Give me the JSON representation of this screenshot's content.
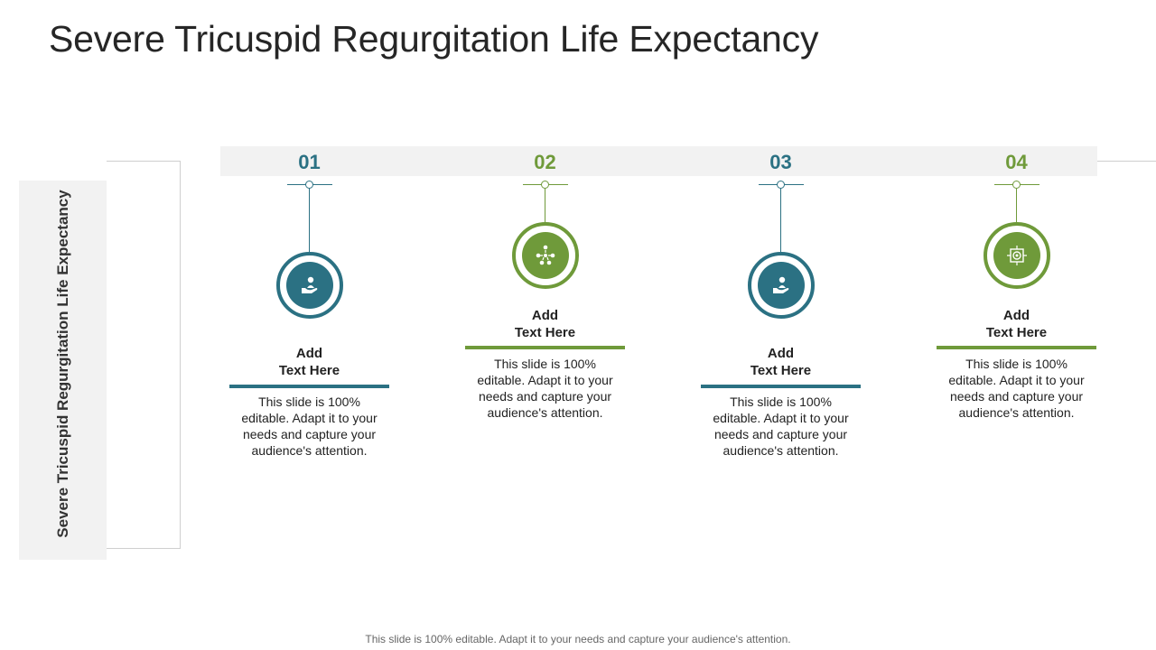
{
  "title": "Severe Tricuspid Regurgitation Life Expectancy",
  "side_label": "Severe Tricuspid Regurgitation Life Expectancy",
  "colors": {
    "teal": "#2b7183",
    "green": "#6f9a3a",
    "panel": "#f2f2f2"
  },
  "steps": [
    {
      "number": "01",
      "heading_1": "Add",
      "heading_2": "Text Here",
      "body": "This slide is 100% editable. Adapt it to your needs and capture your audience's attention.",
      "icon": "hand-holding-person-icon",
      "color": "teal"
    },
    {
      "number": "02",
      "heading_1": "Add",
      "heading_2": "Text Here",
      "body": "This slide is 100% editable. Adapt it to your needs and capture your audience's attention.",
      "icon": "team-network-icon",
      "color": "green"
    },
    {
      "number": "03",
      "heading_1": "Add",
      "heading_2": "Text Here",
      "body": "This slide is 100% editable. Adapt it to your needs and capture your audience's attention.",
      "icon": "hand-holding-person-icon",
      "color": "teal"
    },
    {
      "number": "04",
      "heading_1": "Add",
      "heading_2": "Text Here",
      "body": "This slide is 100% editable. Adapt it to your needs and capture your audience's attention.",
      "icon": "target-process-icon",
      "color": "green"
    }
  ],
  "footer": "This slide is 100% editable. Adapt it to your needs and capture your audience's attention."
}
